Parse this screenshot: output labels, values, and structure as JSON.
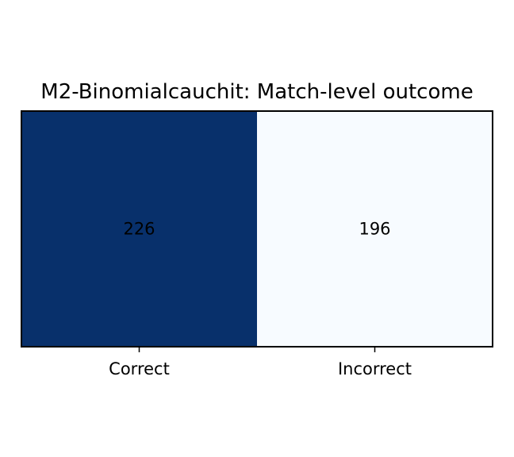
{
  "chart_data": {
    "type": "heatmap",
    "title": "M2-Binomialcauchit: Match-level outcome",
    "categories": [
      "Correct",
      "Incorrect"
    ],
    "values": [
      226,
      196
    ],
    "colormap": "Blues",
    "colors": {
      "high": "#08306b",
      "low": "#f7fbff",
      "text_on_dark": "#000000",
      "text_on_light": "#000000"
    },
    "xlabel": "",
    "ylabel": "",
    "grid": false,
    "legend": "none"
  }
}
